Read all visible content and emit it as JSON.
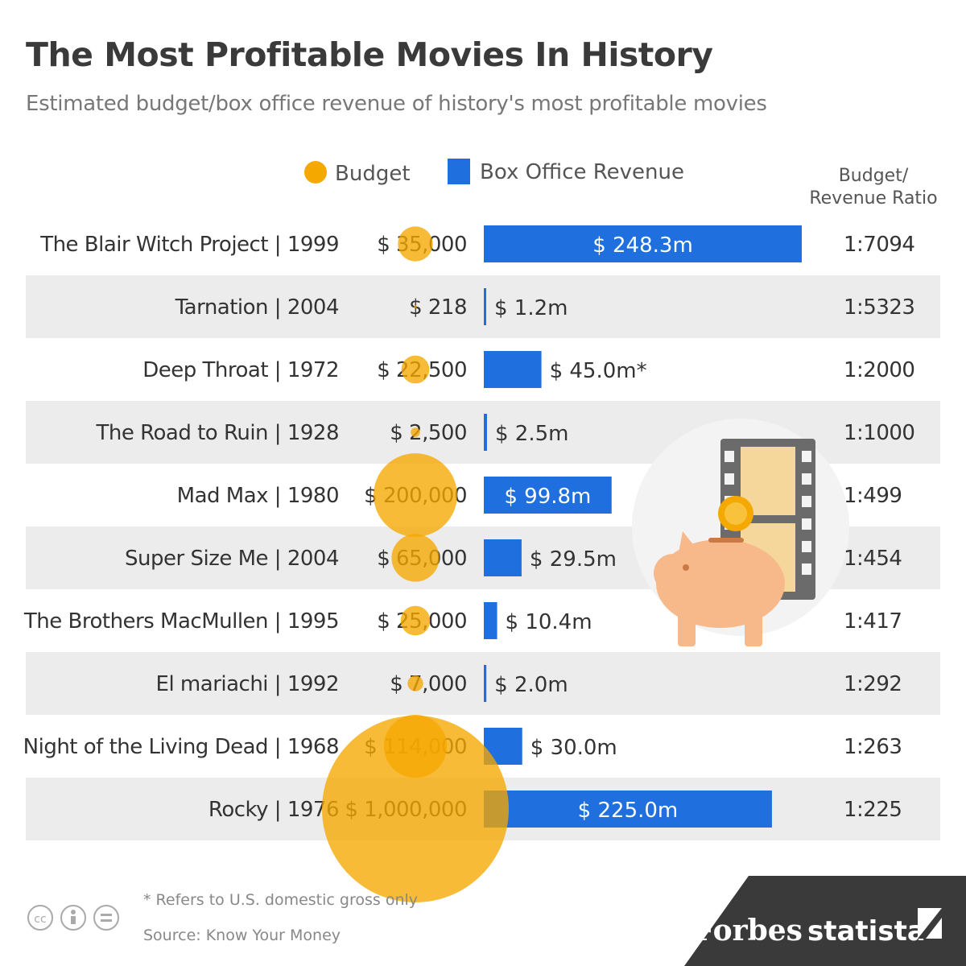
{
  "header": {
    "title": "The Most Profitable Movies In History",
    "subtitle": "Estimated budget/box office revenue of history's most profitable movies"
  },
  "legend": {
    "budget": "Budget",
    "revenue": "Box Office Revenue",
    "ratio_header_line1": "Budget/",
    "ratio_header_line2": "Revenue Ratio"
  },
  "colors": {
    "budget": "#f5a800",
    "revenue": "#1f6fde",
    "band": "#ececec",
    "text": "#333333"
  },
  "chart_data": {
    "type": "bar",
    "title": "The Most Profitable Movies In History",
    "subtitle": "Estimated budget/box office revenue of history's most profitable movies",
    "categories": [
      "The Blair Witch Project | 1999",
      "Tarnation | 2004",
      "Deep Throat | 1972",
      "The Road to Ruin | 1928",
      "Mad Max | 1980",
      "Super Size Me | 2004",
      "The Brothers MacMullen | 1995",
      "El mariachi | 1992",
      "Night of the Living Dead | 1968",
      "Rocky | 1976"
    ],
    "series": [
      {
        "name": "Budget",
        "values": [
          35000,
          218,
          22500,
          2500,
          200000,
          65000,
          25000,
          7000,
          114000,
          1000000
        ],
        "labels": [
          "$ 35,000",
          "$ 218",
          "$ 22,500",
          "$ 2,500",
          "$ 200,000",
          "$ 65,000",
          "$ 25,000",
          "$ 7,000",
          "$ 114,000",
          "$ 1,000,000"
        ]
      },
      {
        "name": "Box Office Revenue",
        "values": [
          248.3,
          1.2,
          45.0,
          2.5,
          99.8,
          29.5,
          10.4,
          2.0,
          30.0,
          225.0
        ],
        "labels": [
          "$ 248.3m",
          "$ 1.2m",
          "$ 45.0m*",
          "$ 2.5m",
          "$ 99.8m",
          "$ 29.5m",
          "$ 10.4m",
          "$ 2.0m",
          "$ 30.0m",
          "$ 225.0m"
        ],
        "labels_inside": [
          true,
          false,
          false,
          false,
          true,
          false,
          false,
          false,
          false,
          true
        ]
      }
    ],
    "ratios": [
      "1:7094",
      "1:5323",
      "1:2000",
      "1:1000",
      "1:499",
      "1:454",
      "1:417",
      "1:292",
      "1:263",
      "1:225"
    ],
    "revenue_unit": "$ millions"
  },
  "footer": {
    "note": "* Refers to U.S. domestic gross only",
    "source": "Source: Know Your Money",
    "brand_forbes": "Forbes",
    "brand_statista": "statista"
  },
  "icons": [
    "cc-icon",
    "by-icon",
    "nd-icon",
    "film-strip-icon",
    "piggy-bank-icon",
    "coin-icon",
    "statista-logo-icon"
  ]
}
